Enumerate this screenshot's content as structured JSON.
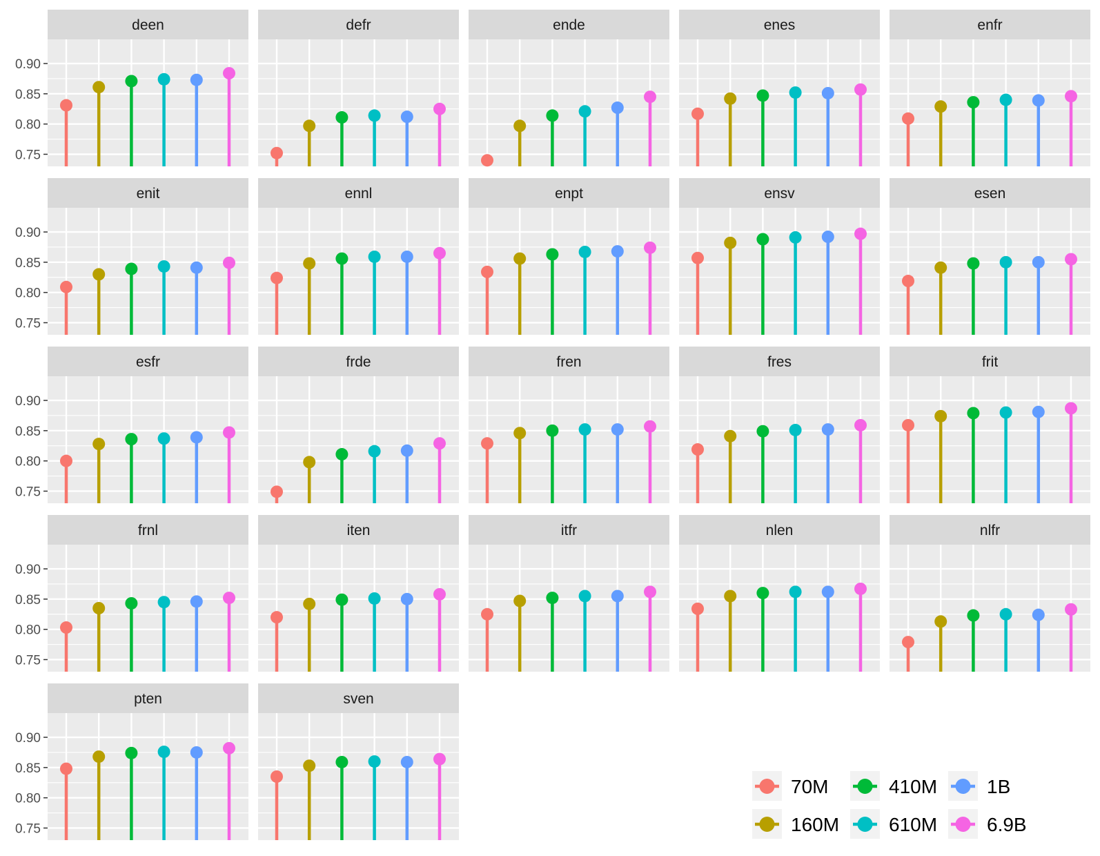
{
  "chart_data": {
    "type": "lollipop-facet",
    "ylim": [
      0.73,
      0.94
    ],
    "yticks": [
      0.75,
      0.8,
      0.85,
      0.9
    ],
    "ytick_labels": [
      "0.75",
      "0.80",
      "0.85",
      "0.90"
    ],
    "grid": true,
    "legend_position": "bottom-right",
    "series": [
      {
        "name": "70M",
        "color": "#F8766D"
      },
      {
        "name": "160M",
        "color": "#B79F00"
      },
      {
        "name": "410M",
        "color": "#00BA38"
      },
      {
        "name": "610M",
        "color": "#00BFC4"
      },
      {
        "name": "1B",
        "color": "#619CFF"
      },
      {
        "name": "6.9B",
        "color": "#F564E3"
      }
    ],
    "facets": [
      {
        "label": "deen",
        "values": [
          0.831,
          0.861,
          0.871,
          0.874,
          0.873,
          0.884
        ]
      },
      {
        "label": "defr",
        "values": [
          0.752,
          0.797,
          0.811,
          0.814,
          0.812,
          0.825
        ]
      },
      {
        "label": "ende",
        "values": [
          0.74,
          0.797,
          0.814,
          0.821,
          0.827,
          0.845
        ]
      },
      {
        "label": "enes",
        "values": [
          0.817,
          0.842,
          0.847,
          0.852,
          0.851,
          0.857
        ]
      },
      {
        "label": "enfr",
        "values": [
          0.809,
          0.829,
          0.836,
          0.84,
          0.839,
          0.846
        ]
      },
      {
        "label": "enit",
        "values": [
          0.809,
          0.83,
          0.839,
          0.843,
          0.841,
          0.849
        ]
      },
      {
        "label": "ennl",
        "values": [
          0.824,
          0.848,
          0.856,
          0.859,
          0.859,
          0.865
        ]
      },
      {
        "label": "enpt",
        "values": [
          0.834,
          0.856,
          0.863,
          0.867,
          0.868,
          0.874
        ]
      },
      {
        "label": "ensv",
        "values": [
          0.857,
          0.882,
          0.888,
          0.891,
          0.892,
          0.897
        ]
      },
      {
        "label": "esen",
        "values": [
          0.819,
          0.841,
          0.848,
          0.85,
          0.85,
          0.855
        ]
      },
      {
        "label": "esfr",
        "values": [
          0.8,
          0.828,
          0.836,
          0.837,
          0.839,
          0.847
        ]
      },
      {
        "label": "frde",
        "values": [
          0.749,
          0.798,
          0.811,
          0.816,
          0.817,
          0.829
        ]
      },
      {
        "label": "fren",
        "values": [
          0.829,
          0.846,
          0.85,
          0.852,
          0.852,
          0.857
        ]
      },
      {
        "label": "fres",
        "values": [
          0.819,
          0.841,
          0.849,
          0.851,
          0.852,
          0.859
        ]
      },
      {
        "label": "frit",
        "values": [
          0.859,
          0.874,
          0.879,
          0.88,
          0.881,
          0.887
        ]
      },
      {
        "label": "frnl",
        "values": [
          0.803,
          0.835,
          0.843,
          0.845,
          0.846,
          0.852
        ]
      },
      {
        "label": "iten",
        "values": [
          0.82,
          0.842,
          0.849,
          0.851,
          0.85,
          0.858
        ]
      },
      {
        "label": "itfr",
        "values": [
          0.825,
          0.847,
          0.852,
          0.855,
          0.855,
          0.862
        ]
      },
      {
        "label": "nlen",
        "values": [
          0.834,
          0.855,
          0.86,
          0.862,
          0.862,
          0.867
        ]
      },
      {
        "label": "nlfr",
        "values": [
          0.779,
          0.813,
          0.823,
          0.825,
          0.824,
          0.833
        ]
      },
      {
        "label": "pten",
        "values": [
          0.848,
          0.868,
          0.874,
          0.876,
          0.875,
          0.882
        ]
      },
      {
        "label": "sven",
        "values": [
          0.835,
          0.853,
          0.859,
          0.86,
          0.859,
          0.864
        ]
      }
    ]
  }
}
